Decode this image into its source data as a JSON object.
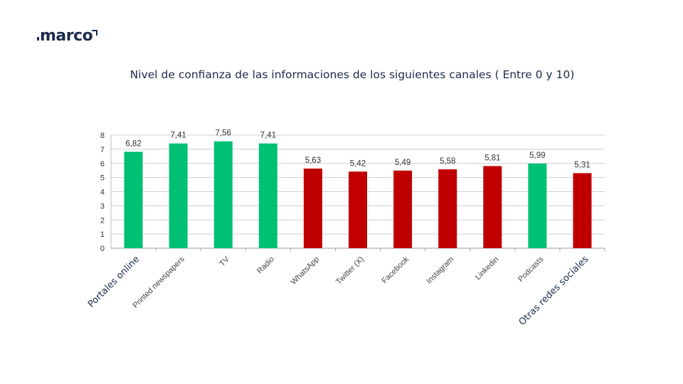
{
  "brand": {
    "logo_text": "marco"
  },
  "chart_data": {
    "type": "bar",
    "title": "Nivel de confianza de las informaciones de los siguientes canales ( Entre 0 y 10)",
    "categories": [
      "Portales online",
      "Printed newspapers",
      "TV",
      "Radio",
      "WhatsApp",
      "Twitter (X)",
      "Facebook",
      "Instagram",
      "Linkedin",
      "Podcasts",
      "Otras redes sociales"
    ],
    "values": [
      6.82,
      7.41,
      7.56,
      7.41,
      5.63,
      5.42,
      5.49,
      5.58,
      5.81,
      5.99,
      5.31
    ],
    "value_labels": [
      "6,82",
      "7,41",
      "7,56",
      "7,41",
      "5,63",
      "5,42",
      "5,49",
      "5,58",
      "5,81",
      "5,99",
      "5,31"
    ],
    "bar_colors": [
      "#00c074",
      "#00c074",
      "#00c074",
      "#00c074",
      "#c00000",
      "#c00000",
      "#c00000",
      "#c00000",
      "#c00000",
      "#00c074",
      "#c00000"
    ],
    "ylim": [
      0,
      8
    ],
    "yticks": [
      0,
      1,
      2,
      3,
      4,
      5,
      6,
      7,
      8
    ],
    "grid": true,
    "xlabel": "",
    "ylabel": ""
  }
}
